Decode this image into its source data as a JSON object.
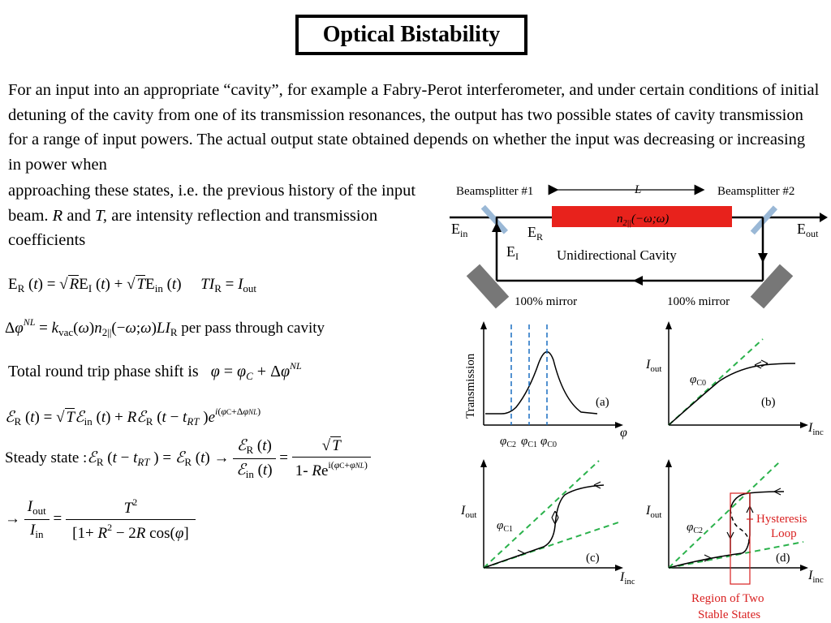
{
  "title": "Optical Bistability",
  "intro": "For an input into an appropriate “cavity”, for example a Fabry-Perot interferometer, and under certain conditions of initial detuning of the cavity from one of its transmission resonances, the output has two possible states of cavity transmission for a range of input powers. The actual output state obtained depends on whether the input was decreasing or increasing in power when",
  "intro2_a": "approaching these states, i.e. the previous history of the input beam. ",
  "intro2_R": "R",
  "intro2_and": " and ",
  "intro2_T": "T,",
  "intro2_b": " are intensity reflection and transmission coefficients",
  "equations": {
    "per_pass": "per pass through cavity",
    "total_phase": "Total round trip phase shift is",
    "steady_state": "Steady state :"
  },
  "cavity_diagram": {
    "beamsplitter1": "Beamsplitter #1",
    "beamsplitter2": "Beamsplitter #2",
    "length": "L",
    "e_in": "E",
    "e_in_sub": "in",
    "e_r": "E",
    "e_r_sub": "R",
    "e_i": "E",
    "e_i_sub": "I",
    "e_out": "E",
    "e_out_sub": "out",
    "medium": "n",
    "medium_sub": "2||",
    "medium_args": "(−ω;ω)",
    "label": "Unidirectional Cavity",
    "mirror_left": "100% mirror",
    "mirror_right": "100% mirror",
    "medium_color": "#e8221c"
  },
  "panels": {
    "a": {
      "tag": "(a)",
      "ylabel": "Transmission",
      "xlabel": "φ",
      "phi_c2": "φ",
      "phi_c2_sub": "C2",
      "phi_c1": "φ",
      "phi_c1_sub": "C1",
      "phi_c0": "φ",
      "phi_c0_sub": "C0"
    },
    "b": {
      "tag": "(b)",
      "ylabel": "I",
      "ylabel_sub": "out",
      "xlabel": "I",
      "xlabel_sub": "inc",
      "phi": "φ",
      "phi_sub": "C0"
    },
    "c": {
      "tag": "(c)",
      "ylabel": "I",
      "ylabel_sub": "out",
      "xlabel": "I",
      "xlabel_sub": "inc",
      "phi": "φ",
      "phi_sub": "C1"
    },
    "d": {
      "tag": "(d)",
      "ylabel": "I",
      "ylabel_sub": "out",
      "xlabel": "I",
      "xlabel_sub": "inc",
      "phi": "φ",
      "phi_sub": "C2",
      "hysteresis1": "Hysteresis",
      "hysteresis2": "Loop",
      "region1": "Region of Two",
      "region2": "Stable States"
    }
  },
  "colors": {
    "dashed_blue": "#1a6fc2",
    "dashed_green": "#2bb24c",
    "annotation_red": "#d92020",
    "mirror_gray": "#777777",
    "splitter_blue": "#9ab8d6"
  }
}
